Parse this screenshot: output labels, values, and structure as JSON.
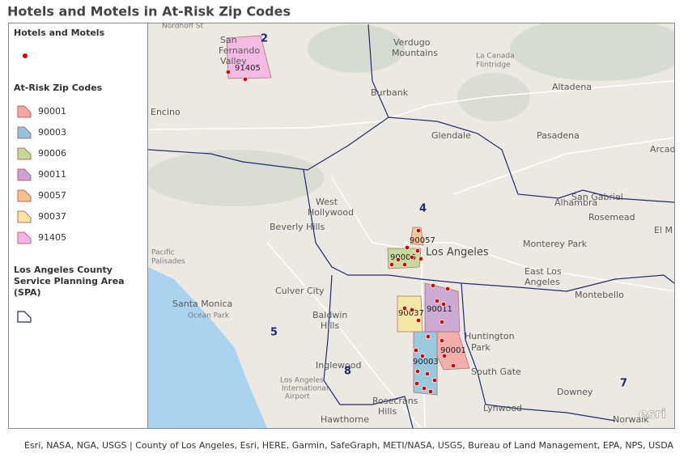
{
  "title": "Hotels and Motels in At-Risk Zip Codes",
  "legend": {
    "hotels_heading": "Hotels and Motels",
    "zip_heading": "At-Risk Zip Codes",
    "zips": [
      {
        "label": "90001",
        "color": "#f4a6a4"
      },
      {
        "label": "90003",
        "color": "#8fc6df"
      },
      {
        "label": "90006",
        "color": "#c0d994"
      },
      {
        "label": "90011",
        "color": "#c8a4d2"
      },
      {
        "label": "90057",
        "color": "#f6c18e"
      },
      {
        "label": "90037",
        "color": "#f6e8a0"
      },
      {
        "label": "91405",
        "color": "#f3b5e5"
      }
    ],
    "spa_heading": [
      "Los Angeles County",
      "Service Planning Area",
      "(SPA)"
    ]
  },
  "map": {
    "place_labels": [
      "Nordhoff St",
      "San",
      "Fernando",
      "Valley",
      "Burbank",
      "Glendale",
      "Pasadena",
      "Altadena",
      "La Canada",
      "Flintridge",
      "Encino",
      "West",
      "Hollywood",
      "Beverly Hills",
      "Los Angeles",
      "Culver City",
      "Santa Monica",
      "Ocean Park",
      "Pacific",
      "Palisades",
      "Baldwin",
      "Hills",
      "Inglewood",
      "Huntington",
      "Park",
      "South Gate",
      "East Los",
      "Angeles",
      "Monterey Park",
      "Alhambra",
      "San Gabriel",
      "Rosemead",
      "Montebello",
      "Downey",
      "Lynwood",
      "Hawthorne",
      "Norwalk",
      "Rosecrans",
      "Hills",
      "Los Angeles",
      "International",
      "Airport",
      "Verdugo",
      "Mountains",
      "El M",
      "Arcad"
    ],
    "spa_labels": [
      "2",
      "4",
      "5",
      "8",
      "7"
    ],
    "logo": "esri"
  },
  "attribution": "Esri, NASA, NGA, USGS | County of Los Angeles, Esri, HERE, Garmin, SafeGraph, METI/NASA, USGS, Bureau of Land Management, EPA, NPS, USDA"
}
